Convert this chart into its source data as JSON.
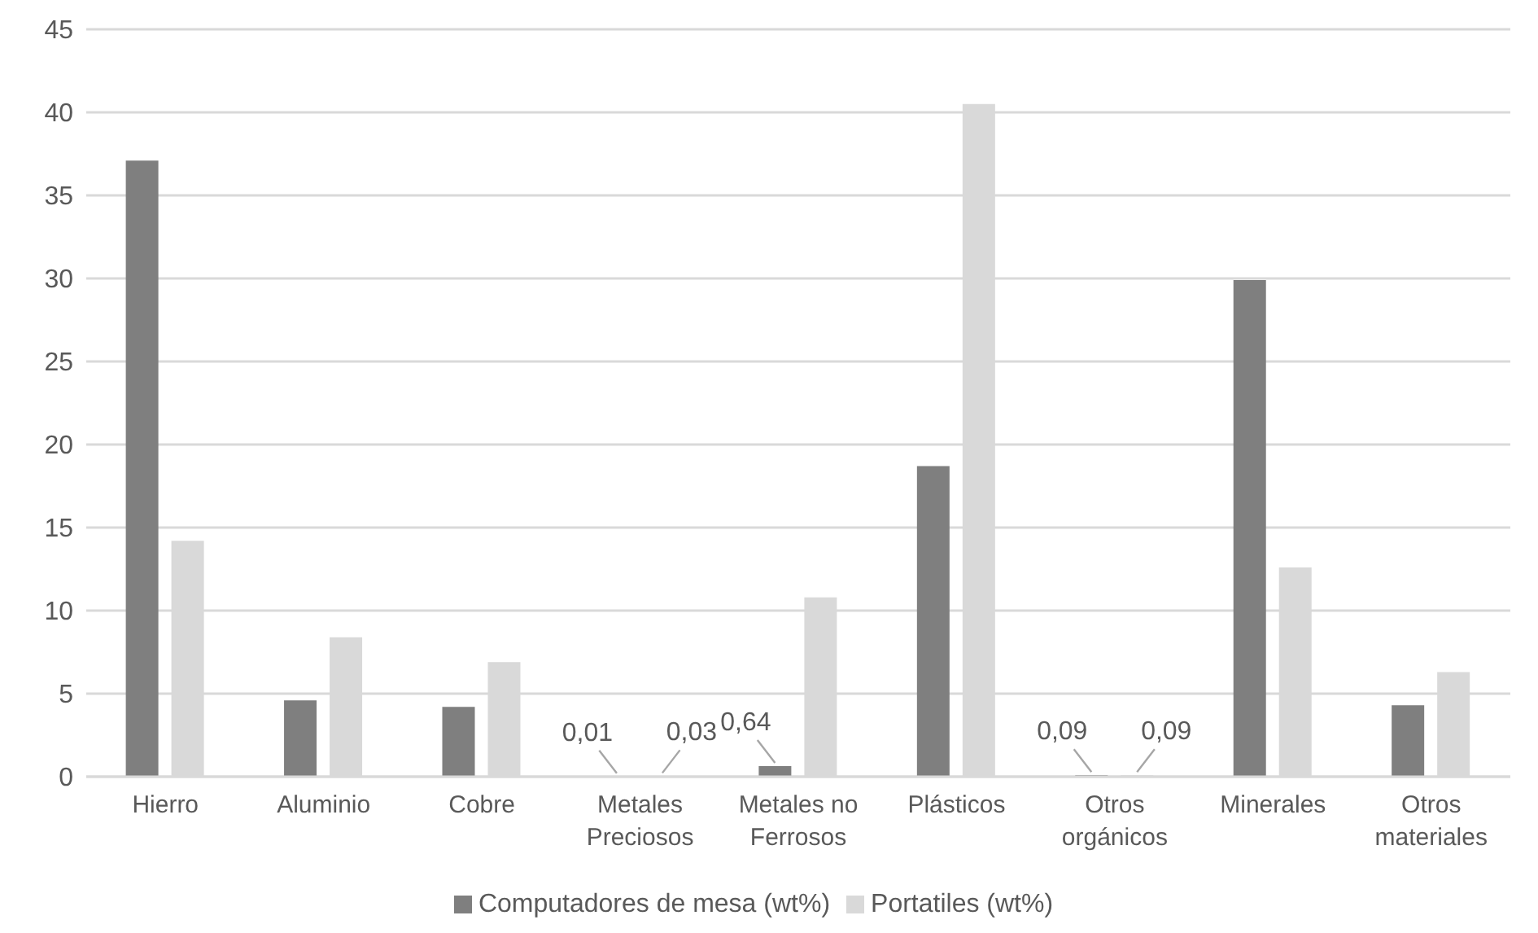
{
  "chart_data": {
    "type": "bar",
    "categories": [
      "Hierro",
      "Aluminio",
      "Cobre",
      "Metales Preciosos",
      "Metales no Ferrosos",
      "Plásticos",
      "Otros orgánicos",
      "Minerales",
      "Otros materiales"
    ],
    "series": [
      {
        "name": "Computadores de mesa (wt%)",
        "color": "#7f7f7f",
        "values": [
          37.1,
          4.6,
          4.2,
          0.01,
          0.64,
          18.7,
          0.09,
          29.9,
          4.3
        ],
        "value_labels": [
          null,
          null,
          null,
          "0,01",
          "0,64",
          null,
          "0,09",
          null,
          null
        ]
      },
      {
        "name": "Portatiles (wt%)",
        "color": "#d9d9d9",
        "values": [
          14.2,
          8.4,
          6.9,
          0.03,
          10.8,
          40.5,
          0.09,
          12.6,
          6.3
        ],
        "value_labels": [
          null,
          null,
          null,
          "0,03",
          null,
          null,
          "0,09",
          null,
          null
        ]
      }
    ],
    "ylim": [
      0,
      45
    ],
    "yticks": [
      0,
      5,
      10,
      15,
      20,
      25,
      30,
      35,
      40,
      45
    ],
    "grid": "y",
    "legend": "bottom"
  }
}
